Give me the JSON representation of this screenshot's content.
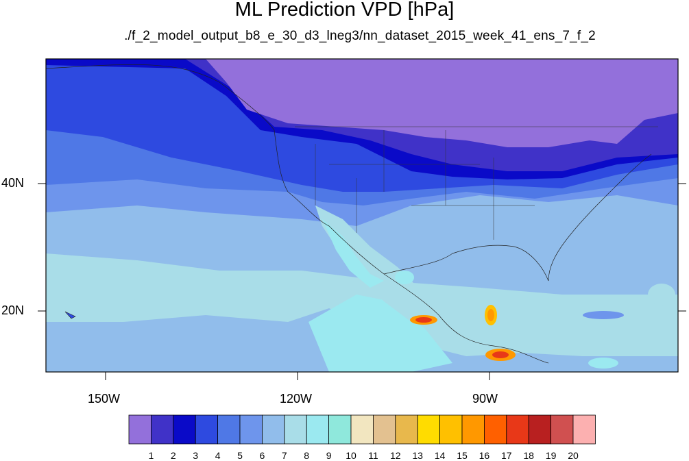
{
  "title": "ML Prediction VPD [hPa]",
  "subtitle": "./f_2_model_output_b8_e_30_d3_lneg3/nn_dataset_2015_week_41_ens_7_f_2",
  "axes": {
    "lat_labels": [
      "40N",
      "20N"
    ],
    "lon_labels": [
      "150W",
      "120W",
      "90W"
    ]
  },
  "colorbar": {
    "labels": [
      "1",
      "2",
      "3",
      "4",
      "5",
      "6",
      "7",
      "8",
      "9",
      "10",
      "11",
      "12",
      "13",
      "14",
      "15",
      "16",
      "17",
      "18",
      "19",
      "20"
    ],
    "colors": [
      "#9370db",
      "#4032c8",
      "#0a0ac8",
      "#2e4ae0",
      "#4f78e6",
      "#6e95ec",
      "#91bdeb",
      "#a9dde8",
      "#9be9f0",
      "#8fe8dc",
      "#f2e6c0",
      "#e3c190",
      "#e8b84c",
      "#ffdc00",
      "#ffc000",
      "#ff9800",
      "#ff6000",
      "#e83818",
      "#b82020",
      "#d05050",
      "#fcb0b0"
    ]
  },
  "chart_data": {
    "type": "heatmap",
    "title": "ML Prediction VPD [hPa]",
    "subtitle": "./f_2_model_output_b8_e_30_d3_lneg3/nn_dataset_2015_week_41_ens_7_f_2",
    "x_ticks": [
      "150W",
      "120W",
      "90W"
    ],
    "y_ticks": [
      "40N",
      "20N"
    ],
    "lon_range": [
      -160,
      -60
    ],
    "lat_range": [
      10,
      59
    ],
    "colorbar_levels": [
      1,
      2,
      3,
      4,
      5,
      6,
      7,
      8,
      9,
      10,
      11,
      12,
      13,
      14,
      15,
      16,
      17,
      18,
      19,
      20
    ]
  }
}
